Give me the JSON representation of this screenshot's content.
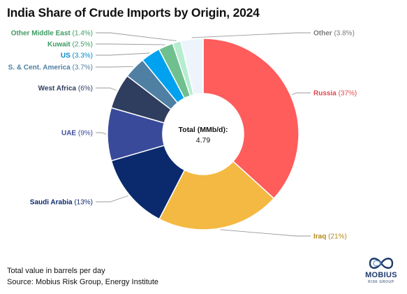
{
  "chart_data": {
    "type": "pie",
    "title": "India Share of Crude Imports by Origin, 2024",
    "center_label": "Total (MMb/d):",
    "center_value": "4.79",
    "slices": [
      {
        "name": "Russia",
        "value": 37,
        "value_label": "(37%)",
        "color": "#ff5c5c"
      },
      {
        "name": "Iraq",
        "value": 21,
        "value_label": "(21%)",
        "color": "#f4b942"
      },
      {
        "name": "Saudi Arabia",
        "value": 13,
        "value_label": "(13%)",
        "color": "#0b2a6e"
      },
      {
        "name": "UAE",
        "value": 9,
        "value_label": "(9%)",
        "color": "#3a4a9a"
      },
      {
        "name": "West Africa",
        "value": 6,
        "value_label": "(6%)",
        "color": "#2f3d5e"
      },
      {
        "name": "S. & Cent. America",
        "value": 3.7,
        "value_label": "(3.7%)",
        "color": "#4f7fa3"
      },
      {
        "name": "US",
        "value": 3.3,
        "value_label": "(3.3%)",
        "color": "#00a2f0"
      },
      {
        "name": "Kuwait",
        "value": 2.5,
        "value_label": "(2.5%)",
        "color": "#6fbf8f"
      },
      {
        "name": "Other Middle East",
        "value": 1.4,
        "value_label": "(1.4%)",
        "color": "#b6ecd0"
      },
      {
        "name": "Other",
        "value": 3.8,
        "value_label": "(3.8%)",
        "color": "#eef4fc"
      }
    ]
  },
  "footer": {
    "note": "Total value in barrels per day",
    "source": "Source: Mobius Risk Group, Energy Institute"
  },
  "logo": {
    "name": "MOBIUS",
    "sub": "RISK GROUP"
  }
}
